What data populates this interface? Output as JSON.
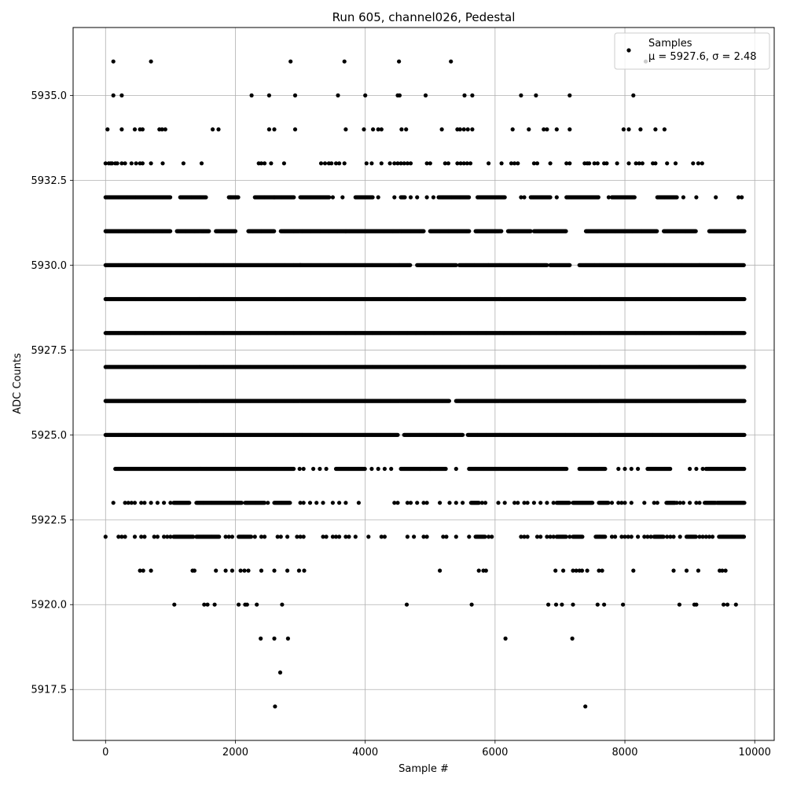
{
  "chart_data": {
    "type": "scatter",
    "title": "Run 605, channel026, Pedestal",
    "xlabel": "Sample #",
    "ylabel": "ADC Counts",
    "xlim": [
      -500,
      10300
    ],
    "ylim": [
      5916,
      5937
    ],
    "xticks": [
      0,
      2000,
      4000,
      6000,
      8000,
      10000
    ],
    "xtick_labels": [
      "0",
      "2000",
      "4000",
      "6000",
      "8000",
      "10000"
    ],
    "yticks": [
      5917.5,
      5920.0,
      5922.5,
      5925.0,
      5927.5,
      5930.0,
      5932.5,
      5935.0
    ],
    "ytick_labels": [
      "5917.5",
      "5920.0",
      "5922.5",
      "5925.0",
      "5927.5",
      "5930.0",
      "5932.5",
      "5935.0"
    ],
    "grid": true,
    "legend": {
      "position": "top-right",
      "entries": [
        "Samples",
        "μ = 5927.6, σ = 2.48"
      ]
    },
    "marker_color": "#000000",
    "x_range": [
      0,
      9840
    ],
    "bands": [
      {
        "y": 5936,
        "x": [
          120,
          700,
          2850,
          3680,
          4520,
          5320,
          8320
        ]
      },
      {
        "y": 5935,
        "x": [
          120,
          250,
          2250,
          2520,
          2920,
          3580,
          4000,
          4500,
          4530,
          4930,
          5530,
          5650,
          6400,
          6630,
          7150,
          8130
        ]
      },
      {
        "y": 5934,
        "x": [
          30,
          250,
          450,
          530,
          570,
          830,
          870,
          920,
          1650,
          1740,
          2520,
          2600,
          2920,
          3700,
          3980,
          4120,
          4200,
          4250,
          4560,
          4630,
          5180,
          5420,
          5460,
          5520,
          5580,
          5650,
          6270,
          6520,
          6750,
          6800,
          6950,
          7150,
          7980,
          8060,
          8240,
          8470,
          8610
        ]
      },
      {
        "y": 5933,
        "x": [
          0,
          50,
          80,
          100,
          150,
          180,
          250,
          300,
          400,
          470,
          530,
          570,
          700,
          880,
          1200,
          1480,
          2360,
          2400,
          2450,
          2550,
          2750,
          3320,
          3380,
          3440,
          3480,
          3550,
          3600,
          3680,
          4020,
          4100,
          4250,
          4380,
          4450,
          4500,
          4550,
          4600,
          4650,
          4700,
          4950,
          5000,
          5230,
          5280,
          5420,
          5470,
          5520,
          5570,
          5620,
          5900,
          6100,
          6250,
          6300,
          6350,
          6600,
          6650,
          6850,
          7100,
          7150,
          7380,
          7420,
          7450,
          7530,
          7580,
          7680,
          7720,
          7880,
          8060,
          8170,
          8220,
          8270,
          8430,
          8470,
          8650,
          8780,
          9050,
          9130,
          9190
        ]
      },
      {
        "y": 5932,
        "dense": [
          [
            0,
            1000
          ],
          [
            1150,
            1550
          ],
          [
            1900,
            2050
          ],
          [
            2300,
            2900
          ],
          [
            3000,
            3450
          ],
          [
            3850,
            4120
          ],
          [
            4550,
            4620
          ],
          [
            5130,
            5600
          ],
          [
            5730,
            6150
          ],
          [
            6550,
            6850
          ],
          [
            7100,
            7600
          ],
          [
            7800,
            8150
          ],
          [
            8500,
            8800
          ]
        ],
        "x": [
          1930,
          2600,
          3500,
          3650,
          4200,
          4450,
          4700,
          4800,
          4950,
          5050,
          6400,
          6450,
          6950,
          7750,
          8900,
          9100,
          9400,
          9750,
          9800
        ]
      },
      {
        "y": 5931,
        "dense": [
          [
            0,
            1000
          ],
          [
            1100,
            1600
          ],
          [
            1700,
            2000
          ],
          [
            2200,
            2600
          ],
          [
            2700,
            3700
          ],
          [
            3700,
            4900
          ],
          [
            5000,
            5600
          ],
          [
            5700,
            6100
          ],
          [
            6200,
            6550
          ],
          [
            6600,
            7100
          ],
          [
            7400,
            8500
          ],
          [
            8600,
            9100
          ],
          [
            9300,
            9840
          ]
        ],
        "x": []
      },
      {
        "y": 5930,
        "dense": [
          [
            0,
            3000
          ],
          [
            3000,
            4700
          ],
          [
            4800,
            5400
          ],
          [
            5450,
            5900
          ],
          [
            5900,
            6800
          ],
          [
            6850,
            7150
          ],
          [
            7300,
            9840
          ]
        ],
        "x": []
      },
      {
        "y": 5929,
        "dense": [
          [
            0,
            9840
          ]
        ],
        "x": []
      },
      {
        "y": 5928,
        "dense": [
          [
            0,
            9840
          ]
        ],
        "x": []
      },
      {
        "y": 5927,
        "dense": [
          [
            0,
            9840
          ]
        ],
        "x": []
      },
      {
        "y": 5926,
        "dense": [
          [
            0,
            5300
          ],
          [
            5400,
            9840
          ]
        ],
        "x": []
      },
      {
        "y": 5925,
        "dense": [
          [
            0,
            4500
          ],
          [
            4600,
            5500
          ],
          [
            5580,
            9840
          ]
        ],
        "x": []
      },
      {
        "y": 5924,
        "dense": [
          [
            150,
            2900
          ],
          [
            3550,
            4000
          ],
          [
            4550,
            5000
          ],
          [
            5000,
            5250
          ],
          [
            5600,
            7100
          ],
          [
            7300,
            7700
          ],
          [
            8350,
            8700
          ],
          [
            9250,
            9840
          ]
        ],
        "x": [
          2990,
          3050,
          3200,
          3300,
          3400,
          4100,
          4200,
          4300,
          4400,
          5400,
          7900,
          8000,
          8100,
          8200,
          9000,
          9100,
          9200
        ]
      },
      {
        "y": 5923,
        "dense": [
          [
            1050,
            1300
          ],
          [
            1400,
            2100
          ],
          [
            2150,
            2450
          ],
          [
            2600,
            2850
          ],
          [
            5630,
            5760
          ],
          [
            6950,
            7150
          ],
          [
            7200,
            7500
          ],
          [
            7600,
            7750
          ],
          [
            8640,
            8780
          ],
          [
            9230,
            9400
          ],
          [
            9420,
            9840
          ]
        ],
        "x": [
          120,
          300,
          350,
          400,
          450,
          550,
          600,
          700,
          800,
          900,
          1000,
          2500,
          3000,
          3050,
          3150,
          3250,
          3350,
          3500,
          3600,
          3700,
          3900,
          4450,
          4500,
          4650,
          4700,
          4800,
          4900,
          4950,
          5150,
          5300,
          5400,
          5500,
          5800,
          5850,
          6050,
          6150,
          6300,
          6350,
          6450,
          6500,
          6600,
          6700,
          6800,
          6900,
          7800,
          7900,
          7950,
          8000,
          8100,
          8300,
          8450,
          8500,
          8800,
          8850,
          8900,
          9000,
          9100,
          9150
        ]
      },
      {
        "y": 5922,
        "dense": [
          [
            1050,
            1350
          ],
          [
            1400,
            1750
          ],
          [
            2050,
            2250
          ],
          [
            5700,
            5850
          ],
          [
            6950,
            7100
          ],
          [
            7200,
            7350
          ],
          [
            7550,
            7700
          ],
          [
            8450,
            8600
          ],
          [
            8950,
            9100
          ],
          [
            9450,
            9840
          ]
        ],
        "x": [
          0,
          200,
          250,
          300,
          450,
          550,
          600,
          750,
          800,
          900,
          950,
          1000,
          1850,
          1900,
          1950,
          2300,
          2400,
          2450,
          2650,
          2700,
          2800,
          2950,
          3000,
          3050,
          3350,
          3400,
          3500,
          3550,
          3600,
          3700,
          3750,
          3850,
          4050,
          4250,
          4300,
          4650,
          4750,
          4900,
          4950,
          5200,
          5250,
          5400,
          5600,
          5900,
          5950,
          6400,
          6450,
          6500,
          6650,
          6700,
          6800,
          6850,
          6900,
          7150,
          7800,
          7850,
          7950,
          8000,
          8050,
          8100,
          8200,
          8300,
          8350,
          8400,
          8650,
          8700,
          8750,
          8850,
          9150,
          9200,
          9250,
          9300,
          9350
        ]
      },
      {
        "y": 5921,
        "x": [
          530,
          580,
          700,
          1340,
          1370,
          1700,
          1850,
          1950,
          2080,
          2140,
          2200,
          2400,
          2600,
          2800,
          2980,
          3060,
          5150,
          5750,
          5820,
          5860,
          6930,
          7050,
          7200,
          7250,
          7300,
          7340,
          7420,
          7600,
          7650,
          8130,
          8750,
          8950,
          9130,
          9460,
          9500,
          9550
        ]
      },
      {
        "y": 5920,
        "x": [
          1060,
          1520,
          1570,
          1680,
          2050,
          2150,
          2180,
          2330,
          2720,
          4640,
          5640,
          6820,
          6940,
          7030,
          7200,
          7580,
          7680,
          7970,
          8840,
          9070,
          9100,
          9520,
          9580,
          9710
        ]
      },
      {
        "y": 5919,
        "x": [
          2390,
          2600,
          2810,
          6160,
          7190
        ]
      },
      {
        "y": 5918,
        "x": [
          2690
        ]
      },
      {
        "y": 5917,
        "x": [
          2610,
          7390
        ]
      }
    ]
  }
}
